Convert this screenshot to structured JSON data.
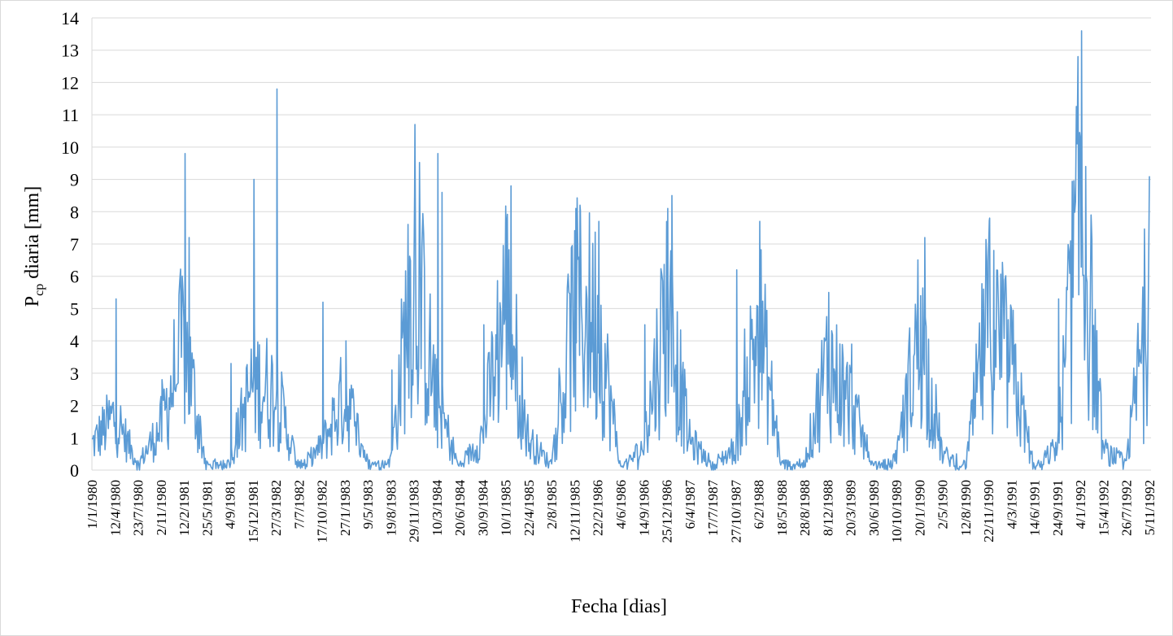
{
  "chart_data": {
    "type": "line",
    "title": "",
    "xlabel": "Fecha [dias]",
    "ylabel_main": "P",
    "ylabel_sub": "cp",
    "ylabel_rest": " diaria [mm]",
    "ylim": [
      0,
      14
    ],
    "y_ticks": [
      0,
      1,
      2,
      3,
      4,
      5,
      6,
      7,
      8,
      9,
      10,
      11,
      12,
      13,
      14
    ],
    "grid": true,
    "legend": "none",
    "color": "#5b9bd5",
    "x_tick_labels": [
      "1/1/1980",
      "12/4/1980",
      "23/7/1980",
      "2/11/1980",
      "12/2/1981",
      "25/5/1981",
      "4/9/1981",
      "15/12/1981",
      "27/3/1982",
      "7/7/1982",
      "17/10/1982",
      "27/1/1983",
      "9/5/1983",
      "19/8/1983",
      "29/11/1983",
      "10/3/1984",
      "20/6/1984",
      "30/9/1984",
      "10/1/1985",
      "22/4/1985",
      "2/8/1985",
      "12/11/1985",
      "22/2/1986",
      "4/6/1986",
      "14/9/1986",
      "25/12/1986",
      "6/4/1987",
      "17/7/1987",
      "27/10/1987",
      "6/2/1988",
      "18/5/1988",
      "28/8/1988",
      "8/12/1988",
      "20/3/1989",
      "30/6/1989",
      "10/10/1989",
      "20/1/1990",
      "2/5/1990",
      "12/8/1990",
      "22/11/1990",
      "4/3/1991",
      "14/6/1991",
      "24/9/1991",
      "4/1/1992",
      "15/4/1992",
      "26/7/1992",
      "5/11/1992"
    ],
    "series": [
      {
        "x": [
          "1/1/1980",
          "12/4/1980",
          "23/7/1980",
          "2/11/1980",
          "12/2/1981",
          "25/5/1981",
          "4/9/1981",
          "15/12/1981",
          "27/3/1982",
          "7/7/1982",
          "17/10/1982",
          "27/1/1983",
          "9/5/1983",
          "19/8/1983",
          "29/11/1983",
          "10/3/1984",
          "20/6/1984",
          "30/9/1984",
          "10/1/1985",
          "22/4/1985",
          "2/8/1985",
          "12/11/1985",
          "22/2/1986",
          "4/6/1986",
          "14/9/1986",
          "25/12/1986",
          "6/4/1987",
          "17/7/1987",
          "27/10/1987",
          "6/2/1988",
          "18/5/1988",
          "28/8/1988",
          "8/12/1988",
          "20/3/1989",
          "30/6/1989",
          "10/10/1989",
          "20/1/1990",
          "2/5/1990",
          "12/8/1990",
          "22/11/1990",
          "4/3/1991",
          "14/6/1991",
          "24/9/1991",
          "4/1/1992",
          "15/4/1992",
          "26/7/1992",
          "5/11/1992"
        ],
        "values": [
          1.3,
          2.8,
          0.3,
          2.2,
          6.6,
          0.1,
          0.5,
          4.5,
          3.9,
          0.1,
          1.2,
          3.9,
          0.4,
          0.5,
          10.7,
          3.4,
          0.1,
          1.8,
          8.8,
          1.5,
          0.3,
          8.1,
          7.7,
          0.1,
          1.2,
          8.5,
          1.5,
          0.3,
          1.1,
          7.7,
          0.3,
          0.4,
          5.5,
          3.4,
          0.1,
          0.6,
          7.2,
          0.8,
          0.2,
          7.8,
          5.2,
          0.1,
          1.2,
          13.6,
          1.0,
          0.4,
          9.1
        ],
        "peaks": [
          {
            "x": "12/4/1980",
            "y": 5.3
          },
          {
            "x": "2/11/1980",
            "y": 2.8
          },
          {
            "x": "12/2/1981",
            "y": 9.8
          },
          {
            "x": "12/2/1981",
            "y": 7.2
          },
          {
            "x": "4/9/1981",
            "y": 3.3
          },
          {
            "x": "15/12/1981",
            "y": 9.0
          },
          {
            "x": "27/3/1982",
            "y": 11.8
          },
          {
            "x": "17/10/1982",
            "y": 5.2
          },
          {
            "x": "27/1/1983",
            "y": 4.0
          },
          {
            "x": "19/8/1983",
            "y": 3.1
          },
          {
            "x": "29/11/1983",
            "y": 10.7
          },
          {
            "x": "10/3/1984",
            "y": 9.8
          },
          {
            "x": "10/3/1984",
            "y": 8.6
          },
          {
            "x": "30/9/1984",
            "y": 4.5
          },
          {
            "x": "10/1/1985",
            "y": 7.7
          },
          {
            "x": "10/1/1985",
            "y": 8.8
          },
          {
            "x": "12/11/1985",
            "y": 8.1
          },
          {
            "x": "12/11/1985",
            "y": 8.2
          },
          {
            "x": "22/2/1986",
            "y": 7.7
          },
          {
            "x": "14/9/1986",
            "y": 4.5
          },
          {
            "x": "25/12/1986",
            "y": 8.1
          },
          {
            "x": "25/12/1986",
            "y": 8.5
          },
          {
            "x": "27/10/1987",
            "y": 6.2
          },
          {
            "x": "6/2/1988",
            "y": 7.7
          },
          {
            "x": "8/12/1988",
            "y": 5.5
          },
          {
            "x": "20/3/1989",
            "y": 3.9
          },
          {
            "x": "20/1/1990",
            "y": 5.4
          },
          {
            "x": "20/1/1990",
            "y": 7.2
          },
          {
            "x": "22/11/1990",
            "y": 7.8
          },
          {
            "x": "22/11/1990",
            "y": 6.8
          },
          {
            "x": "24/9/1991",
            "y": 5.3
          },
          {
            "x": "4/1/1992",
            "y": 13.6
          },
          {
            "x": "4/1/1992",
            "y": 9.4
          },
          {
            "x": "5/11/1992",
            "y": 9.1
          }
        ]
      }
    ]
  }
}
